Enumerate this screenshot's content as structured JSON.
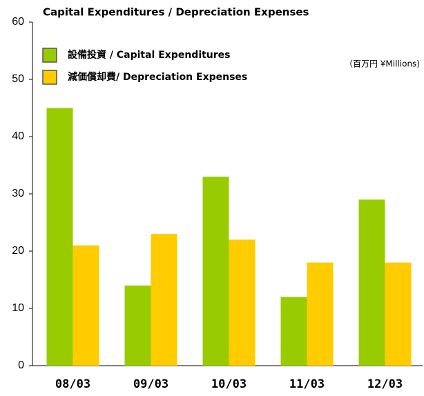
{
  "chart_data": {
    "type": "bar",
    "title": "Capital Expenditures / Depreciation Expenses",
    "unit_note": "（百万円 ¥Millions)",
    "categories": [
      "08/03",
      "09/03",
      "10/03",
      "11/03",
      "12/03"
    ],
    "series": [
      {
        "name": "設備投資 / Capital Expenditures",
        "color": "#99cc00",
        "values": [
          45,
          14,
          33,
          12,
          29
        ]
      },
      {
        "name": "減価償却費/ Depreciation Expenses",
        "color": "#ffcc00",
        "values": [
          21,
          23,
          22,
          18,
          18
        ]
      }
    ],
    "ylim": [
      0,
      60
    ],
    "yticks": [
      0,
      10,
      20,
      30,
      40,
      50,
      60
    ],
    "grid": false
  }
}
